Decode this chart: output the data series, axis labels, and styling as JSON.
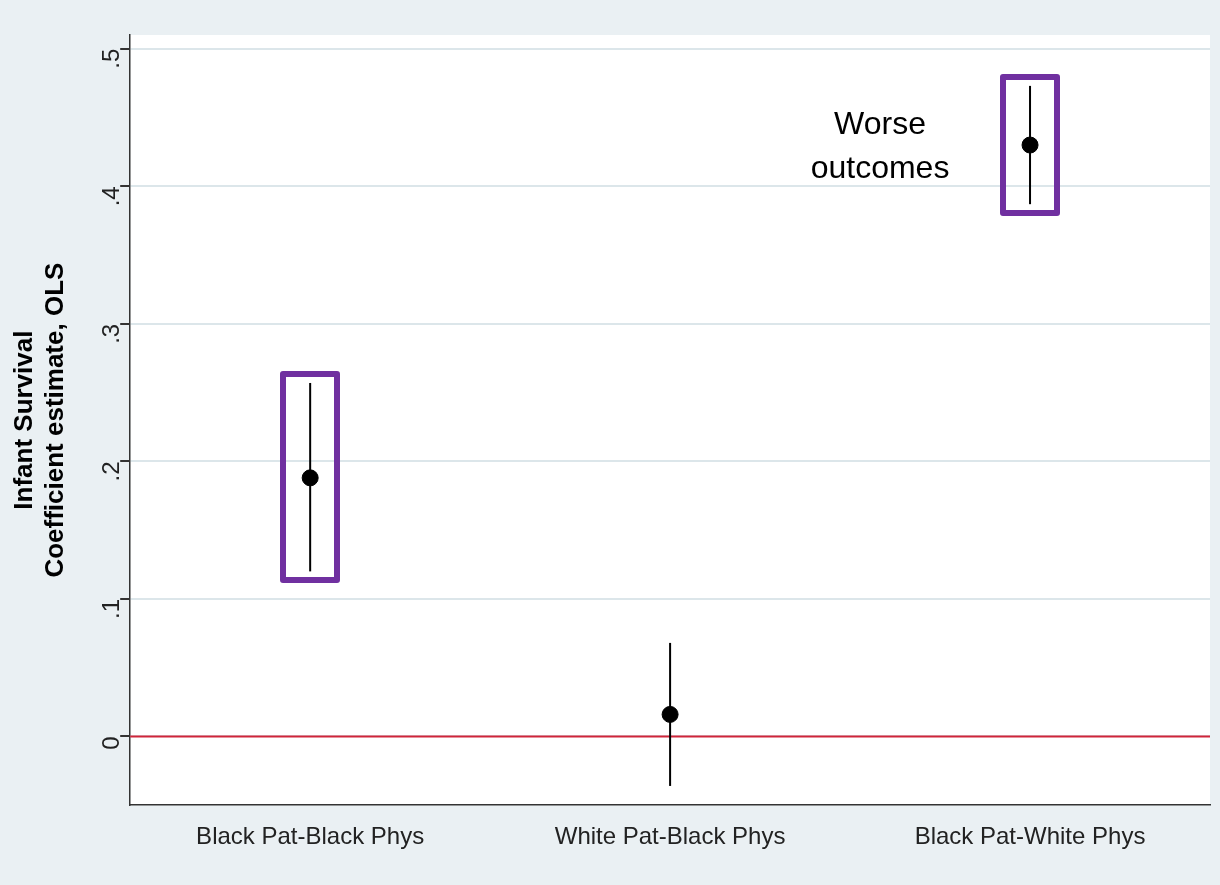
{
  "chart_data": {
    "type": "scatter",
    "ylabel": "Infant Survival\nCoefficient estimate, OLS",
    "categories": [
      "Black Pat-Black Phys",
      "White Pat-Black Phys",
      "Black Pat-White Phys"
    ],
    "series": [
      {
        "color": "#000000",
        "values": [
          0.188,
          0.016,
          0.43
        ],
        "errors": [
          [
            0.12,
            0.257
          ],
          [
            -0.036,
            0.068
          ],
          [
            0.387,
            0.473
          ]
        ]
      }
    ],
    "ylim": [
      -0.05,
      0.51
    ],
    "yticks": [
      {
        "value": 0,
        "label": "0"
      },
      {
        "value": 0.1,
        "label": ".1"
      },
      {
        "value": 0.2,
        "label": ".2"
      },
      {
        "value": 0.3,
        "label": ".3"
      },
      {
        "value": 0.4,
        "label": ".4"
      },
      {
        "value": 0.5,
        "label": ".5"
      }
    ],
    "ref_lines": [
      {
        "axis": "y",
        "value": 0,
        "color": "#d0253a"
      }
    ],
    "annotations": [
      {
        "text": "Worse outcomes",
        "x": "Black Pat-White Phys",
        "y": 0.43
      }
    ],
    "grid": "y",
    "marker": "circle",
    "legend": false
  }
}
